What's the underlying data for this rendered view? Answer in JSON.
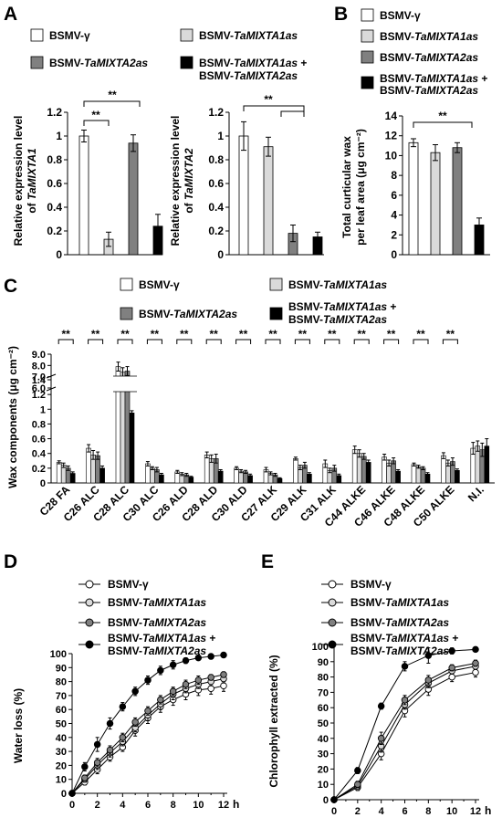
{
  "panel_letters": {
    "a": "A",
    "b": "B",
    "c": "C",
    "d": "D",
    "e": "E"
  },
  "legend_labels": {
    "bsmv": "BSMV-γ",
    "m1_prefix": "BSMV-",
    "m1_italic": "TaMIXTA1as",
    "m2_prefix": "BSMV-",
    "m2_italic": "TaMIXTA2as",
    "both_l1_prefix": "BSMV-",
    "both_l1_italic": "TaMIXTA1as",
    "both_l1_suffix": " +",
    "both_l2_prefix": "BSMV-",
    "both_l2_italic": "TaMIXTA2as"
  },
  "colors": {
    "white": "#ffffff",
    "light": "#dadada",
    "dark": "#808080",
    "black": "#000000"
  },
  "significance": "**",
  "chart_data": [
    {
      "id": "A1",
      "type": "bar",
      "ylabel_line1": "Relative expression level",
      "ylabel_line2_prefix": "of ",
      "ylabel_line2_italic": "TaMIXTA1",
      "ylim": [
        0,
        1.2
      ],
      "yticks": [
        "0",
        "0.2",
        "0.4",
        "0.6",
        "0.8",
        "1",
        "1.2"
      ],
      "series": [
        {
          "name": "BSMV-γ",
          "value": 1.0,
          "err": 0.05
        },
        {
          "name": "BSMV-TaMIXTA1as",
          "value": 0.13,
          "err": 0.06
        },
        {
          "name": "BSMV-TaMIXTA2as",
          "value": 0.94,
          "err": 0.07
        },
        {
          "name": "BSMV-TaMIXTA1as + BSMV-TaMIXTA2as",
          "value": 0.24,
          "err": 0.1
        }
      ]
    },
    {
      "id": "A2",
      "type": "bar",
      "ylabel_line1": "Relative expression level",
      "ylabel_line2_prefix": "of ",
      "ylabel_line2_italic": "TaMIXTA2",
      "ylim": [
        0,
        1.2
      ],
      "yticks": [
        "0",
        "0.2",
        "0.4",
        "0.6",
        "0.8",
        "1",
        "1.2"
      ],
      "series": [
        {
          "name": "BSMV-γ",
          "value": 1.0,
          "err": 0.12
        },
        {
          "name": "BSMV-TaMIXTA1as",
          "value": 0.91,
          "err": 0.08
        },
        {
          "name": "BSMV-TaMIXTA2as",
          "value": 0.18,
          "err": 0.07
        },
        {
          "name": "BSMV-TaMIXTA1as + BSMV-TaMIXTA2as",
          "value": 0.15,
          "err": 0.04
        }
      ]
    },
    {
      "id": "B",
      "type": "bar",
      "ylabel_line1": "Total curticular wax",
      "ylabel_line2": "per leaf area  (μg cm⁻²)",
      "ylim": [
        0,
        14
      ],
      "yticks": [
        "0",
        "2",
        "4",
        "6",
        "8",
        "10",
        "12",
        "14"
      ],
      "series": [
        {
          "name": "BSMV-γ",
          "value": 11.3,
          "err": 0.4
        },
        {
          "name": "BSMV-TaMIXTA1as",
          "value": 10.3,
          "err": 0.8
        },
        {
          "name": "BSMV-TaMIXTA2as",
          "value": 10.8,
          "err": 0.5
        },
        {
          "name": "BSMV-TaMIXTA1as + BSMV-TaMIXTA2as",
          "value": 3.0,
          "err": 0.7
        }
      ]
    },
    {
      "id": "C",
      "type": "bar",
      "ylabel": "Wax components (μg cm⁻²)",
      "yticks_low": [
        "0",
        "0.2",
        "0.4",
        "0.6",
        "0.8",
        "1",
        "1.2",
        "1.4"
      ],
      "yticks_high": [
        "6.0",
        "7.0",
        "8.0",
        "9.0"
      ],
      "y_break": [
        1.4,
        6.0
      ],
      "categories": [
        "C28 FA",
        "C26 ALC",
        "C28 ALC",
        "C30 ALC",
        "C26 ALD",
        "C28 ALD",
        "C30 ALD",
        "C27 ALK",
        "C29 ALK",
        "C31 ALK",
        "C44 ALKE",
        "C46 ALKE",
        "C48 ALKE",
        "C50 ALKE",
        "N.I."
      ],
      "series": [
        {
          "name": "BSMV-γ",
          "values": [
            0.28,
            0.47,
            7.9,
            0.26,
            0.15,
            0.38,
            0.2,
            0.18,
            0.33,
            0.26,
            0.45,
            0.35,
            0.25,
            0.37,
            0.47
          ],
          "err": [
            0.02,
            0.05,
            0.4,
            0.03,
            0.02,
            0.04,
            0.02,
            0.03,
            0.02,
            0.05,
            0.05,
            0.04,
            0.02,
            0.04,
            0.08
          ]
        },
        {
          "name": "BSMV-TaMIXTA1as",
          "values": [
            0.24,
            0.38,
            7.4,
            0.2,
            0.12,
            0.33,
            0.16,
            0.13,
            0.21,
            0.17,
            0.4,
            0.27,
            0.22,
            0.27,
            0.5
          ],
          "err": [
            0.03,
            0.06,
            0.4,
            0.02,
            0.02,
            0.05,
            0.02,
            0.02,
            0.03,
            0.03,
            0.05,
            0.04,
            0.02,
            0.04,
            0.07
          ]
        },
        {
          "name": "BSMV-TaMIXTA2as",
          "values": [
            0.2,
            0.37,
            7.5,
            0.18,
            0.11,
            0.33,
            0.15,
            0.11,
            0.24,
            0.2,
            0.36,
            0.3,
            0.2,
            0.29,
            0.45
          ],
          "err": [
            0.03,
            0.05,
            0.4,
            0.03,
            0.02,
            0.06,
            0.02,
            0.02,
            0.04,
            0.04,
            0.04,
            0.04,
            0.02,
            0.05,
            0.09
          ]
        },
        {
          "name": "BSMV-TaMIXTA1as + BSMV-TaMIXTA2as",
          "values": [
            0.13,
            0.2,
            0.95,
            0.11,
            0.08,
            0.16,
            0.1,
            0.06,
            0.12,
            0.1,
            0.28,
            0.16,
            0.12,
            0.17,
            0.5
          ],
          "err": [
            0.02,
            0.03,
            0.03,
            0.02,
            0.01,
            0.02,
            0.02,
            0.01,
            0.02,
            0.02,
            0.03,
            0.02,
            0.02,
            0.02,
            0.1
          ]
        }
      ]
    },
    {
      "id": "D",
      "type": "line",
      "ylabel": "Water loss (%)",
      "xunit": "h",
      "x": [
        0,
        1,
        2,
        3,
        4,
        5,
        6,
        7,
        8,
        9,
        10,
        11,
        12
      ],
      "ylim": [
        0,
        100
      ],
      "yticks": [
        "0",
        "10",
        "20",
        "30",
        "40",
        "50",
        "60",
        "70",
        "80",
        "90",
        "100"
      ],
      "xticks": [
        "0",
        "2",
        "4",
        "6",
        "8",
        "10",
        "12"
      ],
      "series": [
        {
          "name": "BSMV-γ",
          "values": [
            0,
            8,
            17,
            26,
            33,
            45,
            54,
            62,
            67,
            71,
            74,
            75,
            77
          ],
          "err": [
            0,
            2,
            3,
            3,
            3,
            4,
            4,
            4,
            4,
            4,
            4,
            4,
            4
          ]
        },
        {
          "name": "BSMV-TaMIXTA1as",
          "values": [
            0,
            10,
            20,
            29,
            37,
            47,
            56,
            64,
            71,
            75,
            78,
            80,
            82
          ],
          "err": [
            0,
            2,
            3,
            3,
            3,
            3,
            4,
            4,
            4,
            3,
            3,
            3,
            3
          ]
        },
        {
          "name": "BSMV-TaMIXTA2as",
          "values": [
            0,
            11,
            22,
            31,
            40,
            51,
            59,
            67,
            73,
            78,
            81,
            83,
            85
          ],
          "err": [
            0,
            2,
            3,
            3,
            3,
            3,
            3,
            3,
            3,
            3,
            3,
            2,
            2
          ]
        },
        {
          "name": "BSMV-TaMIXTA1as + BSMV-TaMIXTA2as",
          "values": [
            0,
            19,
            35,
            50,
            62,
            73,
            81,
            88,
            92,
            95,
            97,
            98,
            99
          ],
          "err": [
            0,
            3,
            5,
            4,
            3,
            3,
            3,
            3,
            3,
            2,
            1,
            1,
            1
          ]
        }
      ]
    },
    {
      "id": "E",
      "type": "line",
      "ylabel": "Chlorophyll extracted (%)",
      "xunit": "h",
      "x": [
        0,
        2,
        4,
        6,
        8,
        10,
        12
      ],
      "ylim": [
        0,
        100
      ],
      "yticks": [
        "0",
        "10",
        "20",
        "30",
        "40",
        "50",
        "60",
        "70",
        "80",
        "90",
        "100"
      ],
      "xticks": [
        "0",
        "2",
        "4",
        "6",
        "8",
        "10",
        "12"
      ],
      "series": [
        {
          "name": "BSMV-γ",
          "values": [
            0,
            8,
            30,
            58,
            72,
            80,
            83
          ],
          "err": [
            0,
            2,
            4,
            4,
            4,
            3,
            3
          ]
        },
        {
          "name": "BSMV-TaMIXTA1as",
          "values": [
            0,
            9,
            35,
            62,
            76,
            84,
            87
          ],
          "err": [
            0,
            2,
            4,
            3,
            3,
            2,
            2
          ]
        },
        {
          "name": "BSMV-TaMIXTA2as",
          "values": [
            0,
            10,
            40,
            65,
            78,
            86,
            89
          ],
          "err": [
            0,
            2,
            4,
            3,
            3,
            2,
            2
          ]
        },
        {
          "name": "BSMV-TaMIXTA1as + BSMV-TaMIXTA2as",
          "values": [
            0,
            19,
            61,
            87,
            94,
            97,
            98
          ],
          "err": [
            0,
            2,
            2,
            3,
            5,
            2,
            1
          ]
        }
      ]
    }
  ]
}
